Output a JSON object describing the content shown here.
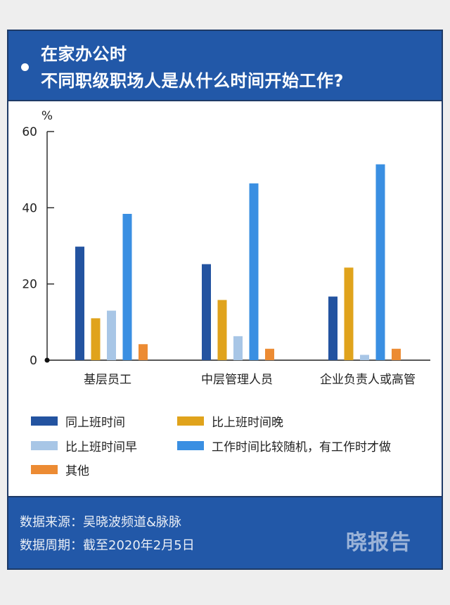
{
  "header": {
    "title_line1": "在家办公时",
    "title_line2": "不同职级职场人是从什么时间开始工作?"
  },
  "chart_data": {
    "type": "bar",
    "unit_label": "%",
    "categories": [
      "基层员工",
      "中层管理人员",
      "企业负责人或高管"
    ],
    "ylim": [
      0,
      60
    ],
    "yticks": [
      0,
      20,
      40,
      60
    ],
    "grid": false,
    "legend_position": "bottom",
    "series": [
      {
        "name": "同上班时间",
        "color": "#2353a0",
        "values": [
          29.8,
          25.2,
          16.7
        ]
      },
      {
        "name": "比上班时间晚",
        "color": "#e0a31c",
        "values": [
          11.0,
          15.8,
          24.3
        ]
      },
      {
        "name": "比上班时间早",
        "color": "#a8c6e6",
        "values": [
          13.0,
          6.3,
          1.4
        ]
      },
      {
        "name": "工作时间比较随机，有工作时才做",
        "color": "#3a8fe2",
        "values": [
          38.4,
          46.4,
          51.4
        ]
      },
      {
        "name": "其他",
        "color": "#ec8b33",
        "values": [
          4.2,
          3.0,
          3.0
        ]
      }
    ]
  },
  "footer": {
    "source": "数据来源：吴晓波频道&脉脉",
    "period": "数据周期：截至2020年2月5日",
    "brand": "晓报告"
  }
}
